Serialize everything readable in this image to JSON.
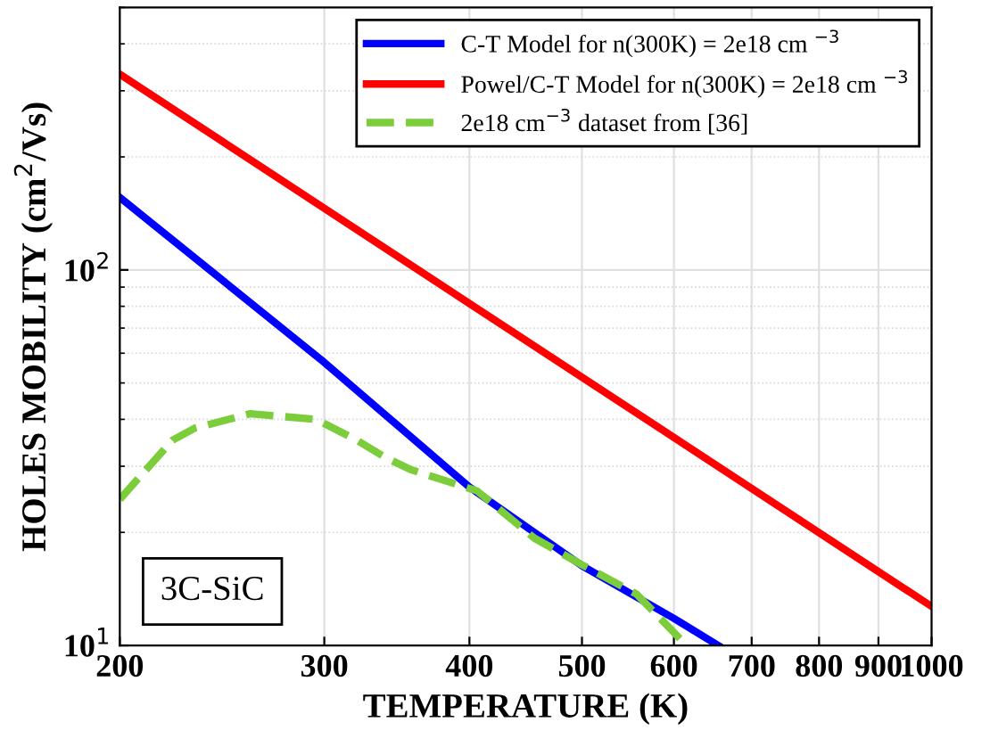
{
  "chart_data": {
    "type": "line",
    "xlabel": "TEMPERATURE (K)",
    "ylabel": "HOLES MOBILITY (cm$^{2}$/Vs)",
    "log": "xy",
    "grid": true,
    "legend": "top right",
    "xlim": [
      200,
      1000
    ],
    "ylim": [
      10,
      500
    ],
    "xticks": [
      200,
      300,
      400,
      500,
      600,
      700,
      800,
      900,
      1000
    ],
    "yticks": [
      {
        "value": 10,
        "label": "10$^{1}$"
      },
      {
        "value": 100,
        "label": "10$^{2}$"
      }
    ],
    "annotations": [
      "3C-SiC"
    ],
    "series": [
      {
        "name": "C-T Model for n(300K) = 2e18 cm $^{−3}$",
        "color": "#0000ff",
        "line_style": "solid",
        "x": [
          200,
          300,
          400,
          500,
          600,
          655
        ],
        "values": [
          156,
          56.7,
          26.4,
          16.3,
          11.8,
          10
        ]
      },
      {
        "name": "Powel/C-T Model for n(300K) = 2e18 cm $^{−3}$",
        "color": "#ff0000",
        "line_style": "solid",
        "x": [
          200,
          1000
        ],
        "values": [
          332,
          12.7
        ]
      },
      {
        "name": "2e18 cm$^{−3}$ dataset from [36]",
        "color": "#7ccd3c",
        "line_style": "dashed",
        "x": [
          200,
          222,
          232,
          259,
          295,
          320,
          339,
          356,
          406,
          455,
          500,
          557,
          584,
          615
        ],
        "values": [
          24.5,
          35.2,
          37.9,
          41.4,
          40,
          35.2,
          31.6,
          29.4,
          25.8,
          19.3,
          16.4,
          13.7,
          11.8,
          10
        ]
      }
    ]
  }
}
